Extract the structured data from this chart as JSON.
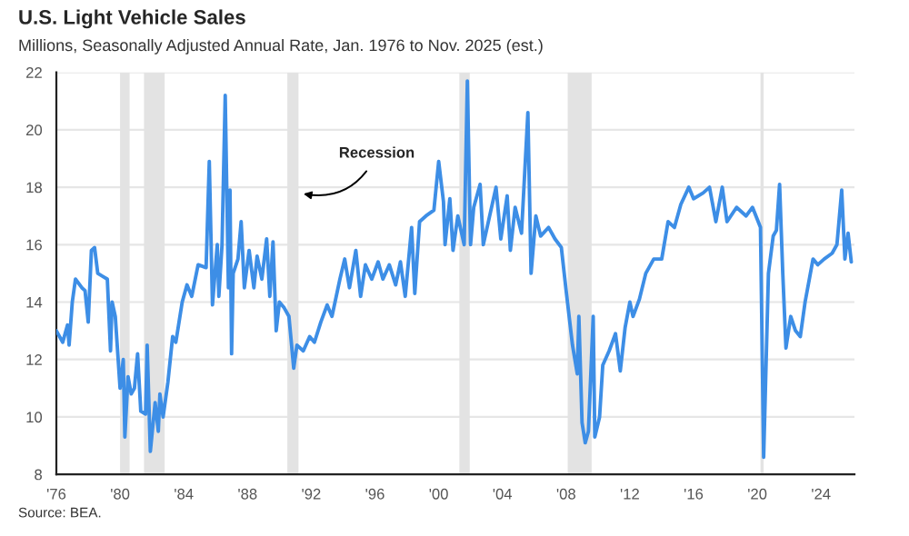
{
  "chart_data": {
    "type": "line",
    "title": "U.S. Light Vehicle Sales",
    "subtitle": "Millions, Seasonally Adjusted Annual Rate, Jan. 1976 to Nov. 2025 (est.)",
    "annotations": [
      "Source: BEA."
    ],
    "x": [
      1976.0,
      1976.4,
      1976.7,
      1976.8,
      1977.0,
      1977.2,
      1977.6,
      1977.8,
      1978.0,
      1978.2,
      1978.4,
      1978.6,
      1978.9,
      1979.2,
      1979.4,
      1979.5,
      1979.7,
      1980.0,
      1980.2,
      1980.3,
      1980.5,
      1980.7,
      1980.9,
      1981.1,
      1981.3,
      1981.6,
      1981.7,
      1981.9,
      1982.2,
      1982.4,
      1982.5,
      1982.7,
      1983.0,
      1983.3,
      1983.5,
      1983.7,
      1983.9,
      1984.2,
      1984.5,
      1984.9,
      1985.4,
      1985.6,
      1985.8,
      1986.1,
      1986.2,
      1986.4,
      1986.6,
      1986.8,
      1986.9,
      1987.0,
      1987.1,
      1987.4,
      1987.6,
      1987.8,
      1988.1,
      1988.4,
      1988.6,
      1988.9,
      1989.2,
      1989.4,
      1989.6,
      1989.8,
      1990.0,
      1990.3,
      1990.6,
      1990.9,
      1991.1,
      1991.5,
      1991.9,
      1992.2,
      1992.6,
      1993.0,
      1993.3,
      1993.8,
      1994.1,
      1994.4,
      1994.8,
      1995.1,
      1995.4,
      1995.8,
      1996.2,
      1996.5,
      1996.9,
      1997.3,
      1997.6,
      1997.9,
      1998.3,
      1998.5,
      1998.8,
      1999.2,
      1999.7,
      2000.0,
      2000.3,
      2000.4,
      2000.7,
      2000.9,
      2001.2,
      2001.6,
      2001.8,
      2002.0,
      2002.2,
      2002.6,
      2002.8,
      2003.2,
      2003.6,
      2003.9,
      2004.3,
      2004.5,
      2004.8,
      2005.2,
      2005.6,
      2005.8,
      2006.1,
      2006.4,
      2006.9,
      2007.3,
      2007.7,
      2008.0,
      2008.4,
      2008.7,
      2008.8,
      2009.0,
      2009.2,
      2009.4,
      2009.7,
      2009.8,
      2010.1,
      2010.3,
      2010.7,
      2011.1,
      2011.4,
      2011.7,
      2012.0,
      2012.2,
      2012.6,
      2013.0,
      2013.5,
      2014.0,
      2014.4,
      2014.8,
      2015.2,
      2015.7,
      2016.0,
      2016.6,
      2017.0,
      2017.4,
      2017.8,
      2018.1,
      2018.7,
      2019.3,
      2019.7,
      2020.2,
      2020.4,
      2020.7,
      2021.0,
      2021.2,
      2021.4,
      2021.6,
      2021.8,
      2022.1,
      2022.4,
      2022.7,
      2023.0,
      2023.3,
      2023.5,
      2023.8,
      2024.2,
      2024.7,
      2025.0,
      2025.3,
      2025.5,
      2025.7,
      2025.9
    ],
    "series": [
      {
        "color": "#3d8ee6",
        "values": [
          13.0,
          12.6,
          13.2,
          12.5,
          14.0,
          14.8,
          14.5,
          14.4,
          13.3,
          15.8,
          15.9,
          15.0,
          14.9,
          14.8,
          12.3,
          14.0,
          13.5,
          11.0,
          12.0,
          9.3,
          11.4,
          10.8,
          11.0,
          12.2,
          10.2,
          10.1,
          12.5,
          8.8,
          10.5,
          9.5,
          10.8,
          10.0,
          11.2,
          12.8,
          12.6,
          13.3,
          14.0,
          14.6,
          14.2,
          15.3,
          15.2,
          18.9,
          13.9,
          16.0,
          14.2,
          16.0,
          21.2,
          14.5,
          17.9,
          12.2,
          15.0,
          15.5,
          16.8,
          14.5,
          15.8,
          14.5,
          15.6,
          14.8,
          16.2,
          14.2,
          16.1,
          13.0,
          14.0,
          13.8,
          13.5,
          11.7,
          12.5,
          12.3,
          12.8,
          12.6,
          13.3,
          13.9,
          13.5,
          14.8,
          15.5,
          14.5,
          15.8,
          14.2,
          15.3,
          14.8,
          15.4,
          14.8,
          15.3,
          14.6,
          15.4,
          14.2,
          16.6,
          14.3,
          16.8,
          17.0,
          17.2,
          18.9,
          17.5,
          16.0,
          17.6,
          15.8,
          17.0,
          16.0,
          21.7,
          16.0,
          17.3,
          18.1,
          16.0,
          17.0,
          18.0,
          16.2,
          17.7,
          15.8,
          17.3,
          16.4,
          20.6,
          15.0,
          17.0,
          16.3,
          16.6,
          16.2,
          15.9,
          14.4,
          12.5,
          11.5,
          13.5,
          9.8,
          9.1,
          9.5,
          13.5,
          9.3,
          10.0,
          11.8,
          12.3,
          12.9,
          11.6,
          13.1,
          14.0,
          13.5,
          14.1,
          15.0,
          15.5,
          15.5,
          16.8,
          16.6,
          17.4,
          18.0,
          17.6,
          17.8,
          18.0,
          16.8,
          18.0,
          16.8,
          17.3,
          17.0,
          17.3,
          16.6,
          8.6,
          15.0,
          16.3,
          16.5,
          18.1,
          15.0,
          12.4,
          13.5,
          13.0,
          12.8,
          14.0,
          14.9,
          15.5,
          15.3,
          15.5,
          15.7,
          16.0,
          17.9,
          15.5,
          16.4,
          15.4
        ]
      }
    ],
    "xlim": [
      1976,
      2026.1
    ],
    "xticks": [
      {
        "value": 1976,
        "label": "'76"
      },
      {
        "value": 1980,
        "label": "'80"
      },
      {
        "value": 1984,
        "label": "'84"
      },
      {
        "value": 1988,
        "label": "'88"
      },
      {
        "value": 1992,
        "label": "'92"
      },
      {
        "value": 1996,
        "label": "'96"
      },
      {
        "value": 2000,
        "label": "'00"
      },
      {
        "value": 2004,
        "label": "'04"
      },
      {
        "value": 2008,
        "label": "'08"
      },
      {
        "value": 2012,
        "label": "'12"
      },
      {
        "value": 2016,
        "label": "'16"
      },
      {
        "value": 2020,
        "label": "'20"
      },
      {
        "value": 2024,
        "label": "'24"
      }
    ],
    "ylim": [
      8,
      22
    ],
    "yticks": [
      8,
      10,
      12,
      14,
      16,
      18,
      20,
      22
    ],
    "grid": "y",
    "bands": [
      {
        "axis": "x",
        "from": 1980.0,
        "to": 1980.6,
        "color": "#e3e3e3"
      },
      {
        "axis": "x",
        "from": 1981.5,
        "to": 1982.8,
        "color": "#e3e3e3"
      },
      {
        "axis": "x",
        "from": 1990.5,
        "to": 1991.2,
        "color": "#e3e3e3",
        "label": "Recession"
      },
      {
        "axis": "x",
        "from": 2001.3,
        "to": 2001.95,
        "color": "#e3e3e3"
      },
      {
        "axis": "x",
        "from": 2008.1,
        "to": 2009.6,
        "color": "#e3e3e3"
      },
      {
        "axis": "x",
        "from": 2020.2,
        "to": 2020.4,
        "color": "#e3e3e3"
      }
    ]
  }
}
